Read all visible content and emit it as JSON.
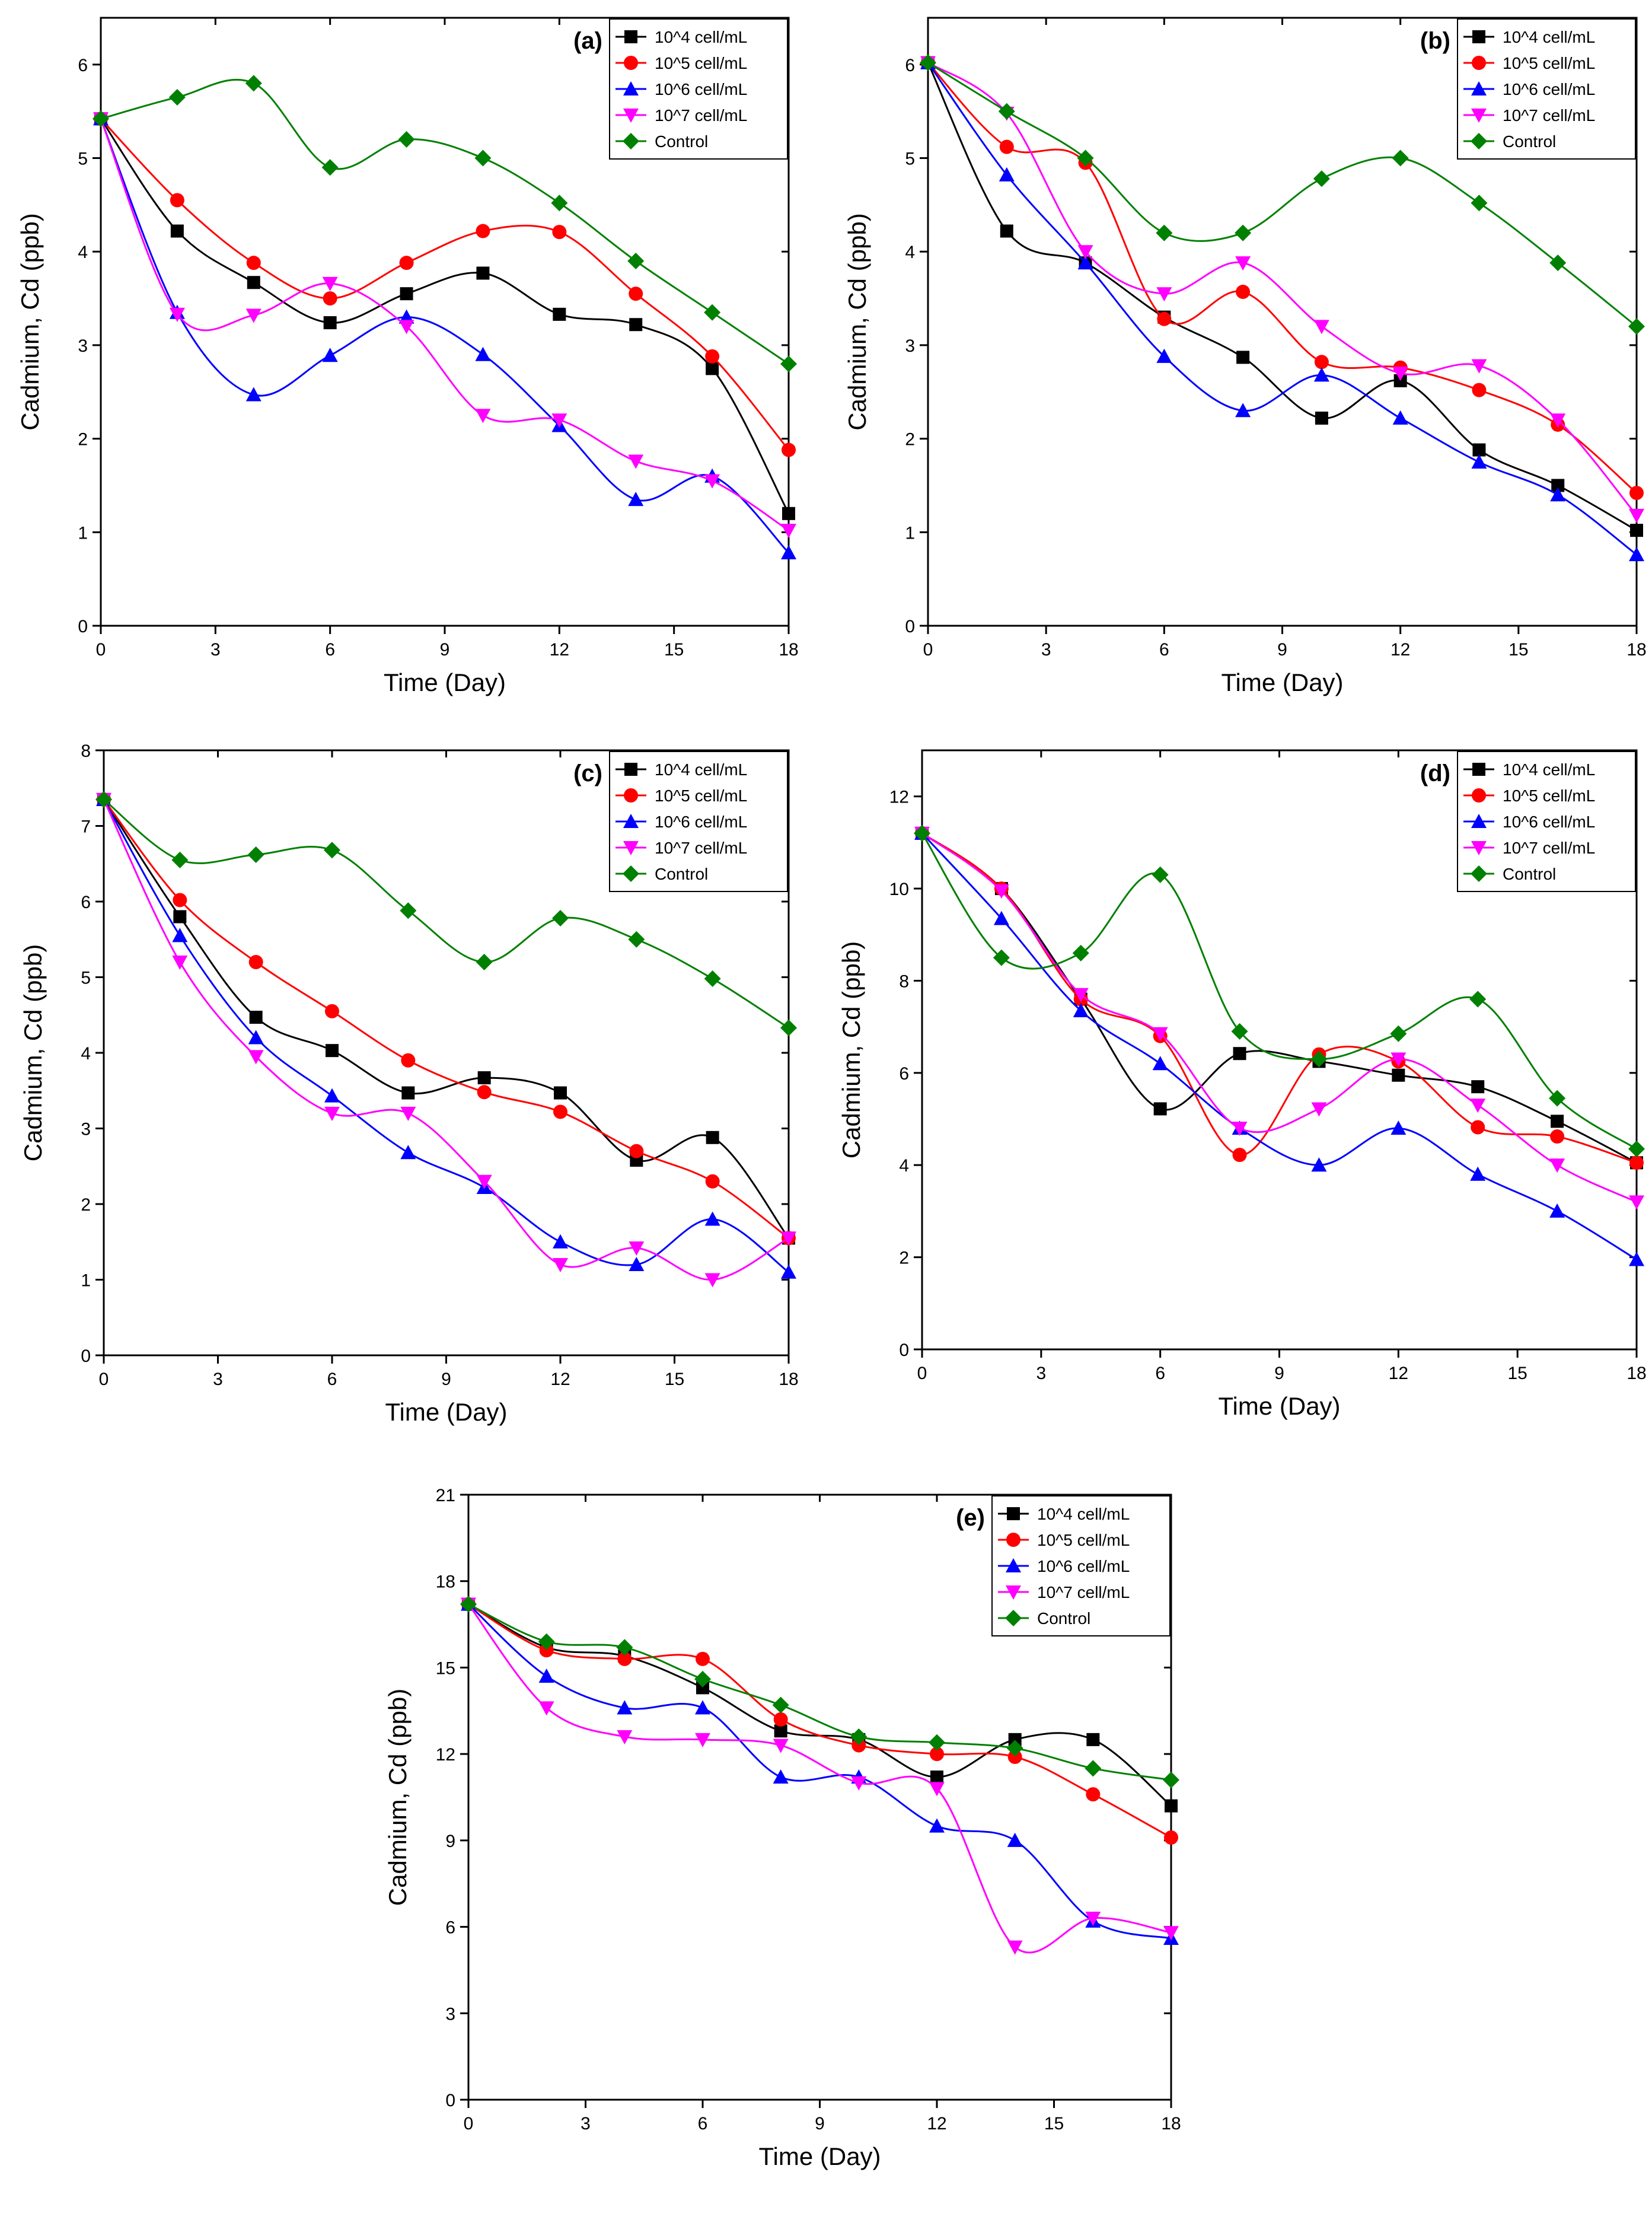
{
  "chart_data": [
    {
      "type": "line",
      "panel_label": "(a)",
      "xlabel": "Time (Day)",
      "ylabel": "Cadmium, Cd (ppb)",
      "xlim": [
        0,
        18
      ],
      "ylim": [
        0,
        6.5
      ],
      "xticks": [
        "0",
        "3",
        "6",
        "9",
        "12",
        "15",
        "18"
      ],
      "yticks": [
        "0",
        "1",
        "2",
        "3",
        "4",
        "5",
        "6"
      ],
      "legend_position": "top-right",
      "x": [
        0,
        2,
        4,
        6,
        8,
        10,
        12,
        14,
        16,
        18
      ],
      "series": [
        {
          "name": "10^4 cell/mL",
          "color": "#000000",
          "marker": "square",
          "values": [
            5.42,
            4.22,
            3.67,
            3.24,
            3.55,
            3.77,
            3.33,
            3.22,
            2.75,
            1.2
          ]
        },
        {
          "name": "10^5 cell/mL",
          "color": "#ff0000",
          "marker": "circle",
          "values": [
            5.42,
            4.55,
            3.88,
            3.5,
            3.88,
            4.22,
            4.21,
            3.55,
            2.88,
            1.88
          ]
        },
        {
          "name": "10^6 cell/mL",
          "color": "#0000ff",
          "marker": "triangle-up",
          "values": [
            5.42,
            3.35,
            2.47,
            2.89,
            3.3,
            2.9,
            2.14,
            1.35,
            1.6,
            0.78
          ]
        },
        {
          "name": "10^7 cell/mL",
          "color": "#ff00ff",
          "marker": "triangle-down",
          "values": [
            5.42,
            3.33,
            3.32,
            3.66,
            3.2,
            2.25,
            2.2,
            1.76,
            1.55,
            1.02
          ]
        },
        {
          "name": "Control",
          "color": "#008000",
          "marker": "diamond",
          "values": [
            5.42,
            5.65,
            5.8,
            4.9,
            5.2,
            5.0,
            4.52,
            3.9,
            3.35,
            2.8
          ]
        }
      ]
    },
    {
      "type": "line",
      "panel_label": "(b)",
      "xlabel": "Time (Day)",
      "ylabel": "Cadmium, Cd (ppb)",
      "xlim": [
        0,
        18
      ],
      "ylim": [
        0,
        6.5
      ],
      "xticks": [
        "0",
        "3",
        "6",
        "9",
        "12",
        "15",
        "18"
      ],
      "yticks": [
        "0",
        "1",
        "2",
        "3",
        "4",
        "5",
        "6"
      ],
      "legend_position": "top-right",
      "x": [
        0,
        2,
        4,
        6,
        8,
        10,
        12,
        14,
        16,
        18
      ],
      "series": [
        {
          "name": "10^4 cell/mL",
          "color": "#000000",
          "marker": "square",
          "values": [
            6.02,
            4.22,
            3.88,
            3.3,
            2.87,
            2.22,
            2.62,
            1.88,
            1.5,
            1.02
          ]
        },
        {
          "name": "10^5 cell/mL",
          "color": "#ff0000",
          "marker": "circle",
          "values": [
            6.02,
            5.12,
            4.95,
            3.28,
            3.57,
            2.82,
            2.76,
            2.52,
            2.15,
            1.42
          ]
        },
        {
          "name": "10^6 cell/mL",
          "color": "#0000ff",
          "marker": "triangle-up",
          "values": [
            6.02,
            4.82,
            3.88,
            2.88,
            2.3,
            2.68,
            2.22,
            1.75,
            1.4,
            0.76
          ]
        },
        {
          "name": "10^7 cell/mL",
          "color": "#ff00ff",
          "marker": "triangle-down",
          "values": [
            6.02,
            5.48,
            4.0,
            3.55,
            3.88,
            3.2,
            2.7,
            2.78,
            2.2,
            1.18
          ]
        },
        {
          "name": "Control",
          "color": "#008000",
          "marker": "diamond",
          "values": [
            6.02,
            5.5,
            5.0,
            4.2,
            4.2,
            4.78,
            5.0,
            4.52,
            3.88,
            3.2
          ]
        }
      ]
    },
    {
      "type": "line",
      "panel_label": "(c)",
      "xlabel": "Time (Day)",
      "ylabel": "Cadmium, Cd (ppb)",
      "xlim": [
        0,
        18
      ],
      "ylim": [
        0,
        8
      ],
      "xticks": [
        "0",
        "3",
        "6",
        "9",
        "12",
        "15",
        "18"
      ],
      "yticks": [
        "0",
        "1",
        "2",
        "3",
        "4",
        "5",
        "6",
        "7",
        "8"
      ],
      "legend_position": "top-right",
      "x": [
        0,
        2,
        4,
        6,
        8,
        10,
        12,
        14,
        16,
        18
      ],
      "series": [
        {
          "name": "10^4 cell/mL",
          "color": "#000000",
          "marker": "square",
          "values": [
            7.35,
            5.8,
            4.47,
            4.03,
            3.47,
            3.67,
            3.47,
            2.58,
            2.88,
            1.55
          ]
        },
        {
          "name": "10^5 cell/mL",
          "color": "#ff0000",
          "marker": "circle",
          "values": [
            7.35,
            6.02,
            5.2,
            4.55,
            3.9,
            3.48,
            3.22,
            2.7,
            2.3,
            1.55
          ]
        },
        {
          "name": "10^6 cell/mL",
          "color": "#0000ff",
          "marker": "triangle-up",
          "values": [
            7.35,
            5.55,
            4.2,
            3.43,
            2.68,
            2.22,
            1.5,
            1.2,
            1.8,
            1.1
          ]
        },
        {
          "name": "10^7 cell/mL",
          "color": "#ff00ff",
          "marker": "triangle-down",
          "values": [
            7.35,
            5.2,
            3.95,
            3.2,
            3.2,
            2.3,
            1.2,
            1.42,
            1.0,
            1.55
          ]
        },
        {
          "name": "Control",
          "color": "#008000",
          "marker": "diamond",
          "values": [
            7.35,
            6.55,
            6.62,
            6.68,
            5.88,
            5.2,
            5.78,
            5.5,
            4.98,
            4.33
          ]
        }
      ]
    },
    {
      "type": "line",
      "panel_label": "(d)",
      "xlabel": "Time (Day)",
      "ylabel": "Cadmium, Cd (ppb)",
      "xlim": [
        0,
        18
      ],
      "ylim": [
        0,
        13
      ],
      "xticks": [
        "0",
        "3",
        "6",
        "9",
        "12",
        "15",
        "18"
      ],
      "yticks": [
        "0",
        "2",
        "4",
        "6",
        "8",
        "10",
        "12"
      ],
      "legend_position": "top-right",
      "x": [
        0,
        2,
        4,
        6,
        8,
        10,
        12,
        14,
        16,
        18
      ],
      "series": [
        {
          "name": "10^4 cell/mL",
          "color": "#000000",
          "marker": "square",
          "values": [
            11.2,
            10.0,
            7.6,
            5.22,
            6.42,
            6.25,
            5.95,
            5.7,
            4.95,
            4.05
          ]
        },
        {
          "name": "10^5 cell/mL",
          "color": "#ff0000",
          "marker": "circle",
          "values": [
            11.2,
            10.0,
            7.6,
            6.8,
            4.22,
            6.4,
            6.25,
            4.82,
            4.62,
            4.05
          ]
        },
        {
          "name": "10^6 cell/mL",
          "color": "#0000ff",
          "marker": "triangle-up",
          "values": [
            11.2,
            9.35,
            7.35,
            6.2,
            4.8,
            4.0,
            4.8,
            3.8,
            3.0,
            1.95
          ]
        },
        {
          "name": "10^7 cell/mL",
          "color": "#ff00ff",
          "marker": "triangle-down",
          "values": [
            11.2,
            9.95,
            7.7,
            6.85,
            4.8,
            5.22,
            6.3,
            5.3,
            4.0,
            3.2
          ]
        },
        {
          "name": "Control",
          "color": "#008000",
          "marker": "diamond",
          "values": [
            11.2,
            8.5,
            8.6,
            10.3,
            6.9,
            6.3,
            6.85,
            7.6,
            5.45,
            4.35
          ]
        }
      ]
    },
    {
      "type": "line",
      "panel_label": "(e)",
      "xlabel": "Time (Day)",
      "ylabel": "Cadmium, Cd (ppb)",
      "xlim": [
        0,
        18
      ],
      "ylim": [
        0,
        21
      ],
      "xticks": [
        "0",
        "3",
        "6",
        "9",
        "12",
        "15",
        "18"
      ],
      "yticks": [
        "0",
        "3",
        "6",
        "9",
        "12",
        "15",
        "18",
        "21"
      ],
      "legend_position": "top-right",
      "x": [
        0,
        2,
        4,
        6,
        8,
        10,
        12,
        14,
        16,
        18
      ],
      "series": [
        {
          "name": "10^4 cell/mL",
          "color": "#000000",
          "marker": "square",
          "values": [
            17.2,
            15.7,
            15.4,
            14.3,
            12.8,
            12.5,
            11.2,
            12.5,
            12.5,
            10.2
          ]
        },
        {
          "name": "10^5 cell/mL",
          "color": "#ff0000",
          "marker": "circle",
          "values": [
            17.2,
            15.6,
            15.3,
            15.3,
            13.2,
            12.3,
            12.0,
            11.9,
            10.6,
            9.1
          ]
        },
        {
          "name": "10^6 cell/mL",
          "color": "#0000ff",
          "marker": "triangle-up",
          "values": [
            17.2,
            14.7,
            13.6,
            13.6,
            11.2,
            11.2,
            9.5,
            9.0,
            6.2,
            5.6
          ]
        },
        {
          "name": "10^7 cell/mL",
          "color": "#ff00ff",
          "marker": "triangle-down",
          "values": [
            17.2,
            13.6,
            12.6,
            12.5,
            12.3,
            11.0,
            10.8,
            5.3,
            6.3,
            5.8
          ]
        },
        {
          "name": "Control",
          "color": "#008000",
          "marker": "diamond",
          "values": [
            17.2,
            15.9,
            15.7,
            14.6,
            13.7,
            12.6,
            12.4,
            12.2,
            11.5,
            11.1
          ]
        }
      ]
    }
  ]
}
